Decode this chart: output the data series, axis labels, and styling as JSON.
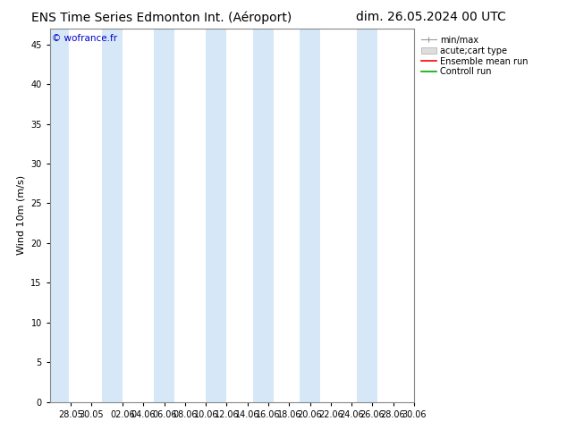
{
  "title_left": "ENS Time Series Edmonton Int. (Aéroport)",
  "title_right": "dim. 26.05.2024 00 UTC",
  "ylabel": "Wind 10m (m/s)",
  "watermark": "© wofrance.fr",
  "ylim": [
    0,
    47
  ],
  "yticks": [
    0,
    5,
    10,
    15,
    20,
    25,
    30,
    35,
    40,
    45
  ],
  "xlim": [
    0,
    35
  ],
  "xtick_positions": [
    2,
    4,
    7,
    9,
    11,
    13,
    15,
    17,
    19,
    21,
    23,
    25,
    27,
    29,
    31,
    33,
    35
  ],
  "xtick_labels": [
    "28.05",
    "30.05",
    "02.06",
    "04.06",
    "06.06",
    "08.06",
    "10.06",
    "12.06",
    "14.06",
    "16.06",
    "18.06",
    "20.06",
    "22.06",
    "24.06",
    "26.06",
    "28.06",
    "30.06"
  ],
  "bg_color": "#ffffff",
  "shaded_color": "#d6e8f7",
  "shaded_bands": [
    [
      0.0,
      1.8
    ],
    [
      5.0,
      7.0
    ],
    [
      10.0,
      12.0
    ],
    [
      15.0,
      17.0
    ],
    [
      19.5,
      21.5
    ],
    [
      24.0,
      26.0
    ],
    [
      29.5,
      31.5
    ]
  ],
  "legend_labels": [
    "min/max",
    "acute;cart type",
    "Ensemble mean run",
    "Controll run"
  ],
  "legend_colors_line": [
    "#999999",
    "#cccccc",
    "#ff0000",
    "#00aa00"
  ],
  "title_fontsize": 10,
  "ylabel_fontsize": 8,
  "tick_fontsize": 7,
  "legend_fontsize": 7,
  "watermark_color": "#0000cc"
}
